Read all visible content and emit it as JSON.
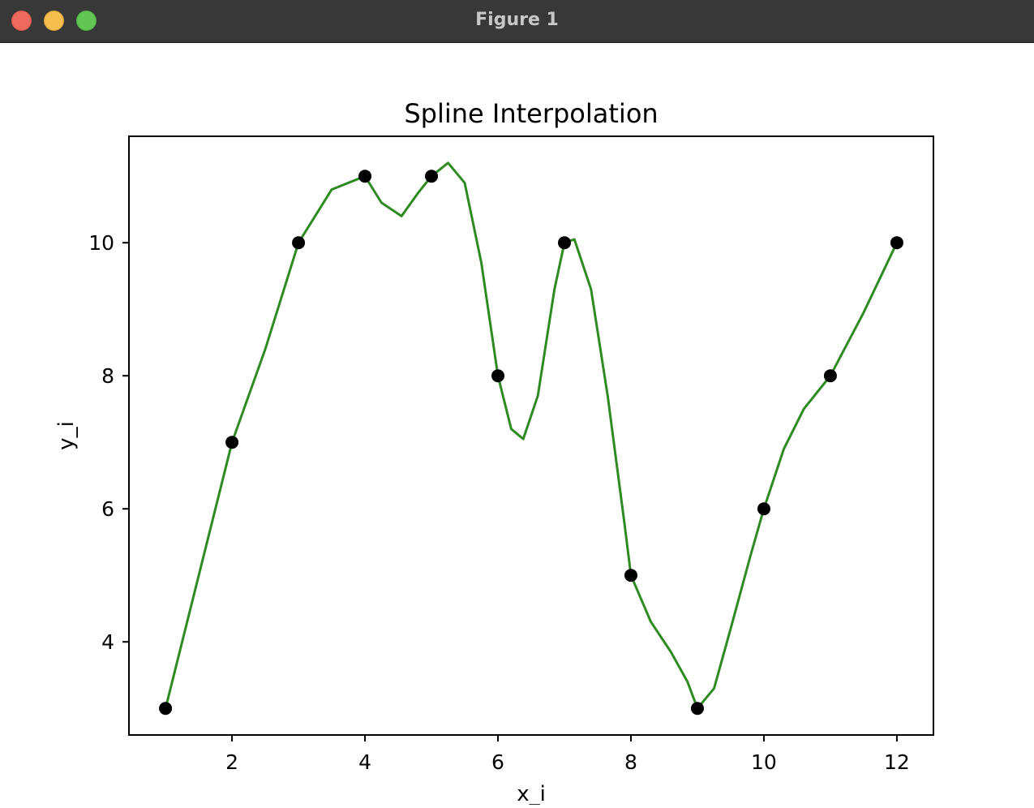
{
  "window": {
    "title": "Figure 1",
    "buttons": {
      "close": "close-button",
      "minimize": "minimize-button",
      "maximize": "maximize-button"
    }
  },
  "chart_data": {
    "type": "line",
    "title": "Spline Interpolation",
    "xlabel": "x_i",
    "ylabel": "y_i",
    "xlim": [
      0.45,
      12.55
    ],
    "ylim": [
      2.6,
      11.6
    ],
    "xticks": [
      2,
      4,
      6,
      8,
      10,
      12
    ],
    "yticks": [
      4,
      6,
      8,
      10
    ],
    "grid": false,
    "points": {
      "x": [
        1,
        2,
        3,
        4,
        5,
        6,
        7,
        8,
        9,
        10,
        11,
        12
      ],
      "y": [
        3,
        7,
        10,
        11,
        11,
        8,
        10,
        5,
        3,
        6,
        8,
        10
      ],
      "color": "#000000"
    },
    "series": [
      {
        "color": "#2e8b22",
        "x": [
          1,
          2,
          2.5,
          3,
          3.5,
          4,
          4.25,
          4.55,
          4.8,
          5,
          5.25,
          5.5,
          5.75,
          6,
          6.2,
          6.38,
          6.6,
          6.85,
          7,
          7.15,
          7.4,
          7.65,
          7.9,
          8,
          8.3,
          8.6,
          8.85,
          9,
          9.25,
          9.5,
          9.8,
          10,
          10.3,
          10.6,
          11,
          11.5,
          12
        ],
        "y": [
          3,
          7,
          8.4,
          10,
          10.8,
          11,
          10.6,
          10.4,
          10.75,
          11,
          11.2,
          10.9,
          9.7,
          8,
          7.2,
          7.05,
          7.7,
          9.3,
          10,
          10.05,
          9.3,
          7.7,
          5.8,
          5,
          4.3,
          3.85,
          3.4,
          3,
          3.3,
          4.2,
          5.3,
          6,
          6.9,
          7.5,
          8,
          8.95,
          10
        ]
      }
    ]
  }
}
